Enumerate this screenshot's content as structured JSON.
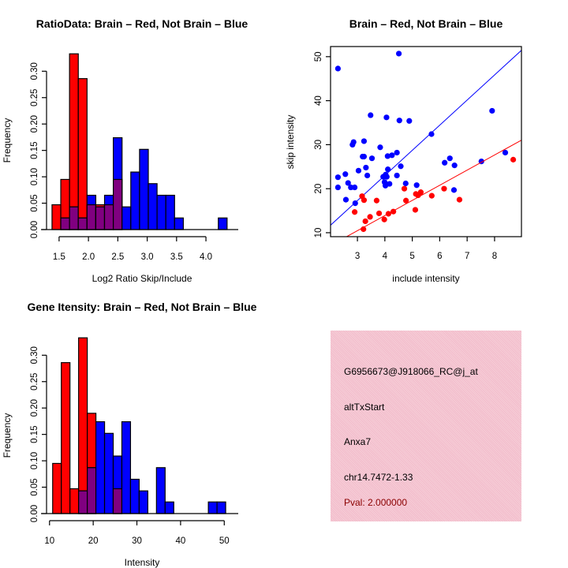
{
  "colors": {
    "red": "#ff0000",
    "blue": "#0000ff",
    "overlap": "#800080",
    "pval": "#8b0000",
    "panel": "#f4c4cf"
  },
  "chart_data": [
    {
      "type": "bar",
      "title": "RatioData: Brain – Red, Not Brain – Blue",
      "xlabel": "Log2 Ratio Skip/Include",
      "ylabel": "Frequency",
      "bin_start": 1.38,
      "bin_width": 0.149,
      "xlim": [
        1.3,
        4.55
      ],
      "ylim": [
        0,
        0.333
      ],
      "xticks": [
        "1.5",
        "2.0",
        "2.5",
        "3.0",
        "3.5",
        "4.0"
      ],
      "yticks": [
        "0.00",
        "0.05",
        "0.10",
        "0.15",
        "0.20",
        "0.25",
        "0.30"
      ],
      "series": [
        {
          "name": "Brain",
          "color": "red",
          "values": [
            0.047,
            0.095,
            0.333,
            0.286,
            0.047,
            0.047,
            0.047,
            0.095,
            0,
            0,
            0,
            0,
            0,
            0,
            0,
            0,
            0,
            0,
            0,
            0
          ]
        },
        {
          "name": "Not Brain",
          "color": "blue",
          "values": [
            0,
            0.022,
            0.043,
            0.022,
            0.065,
            0.043,
            0.065,
            0.174,
            0.043,
            0.109,
            0.152,
            0.087,
            0.065,
            0.065,
            0.022,
            0,
            0,
            0,
            0,
            0.022
          ]
        }
      ]
    },
    {
      "type": "scatter",
      "title": "Brain – Red, Not Brain – Blue",
      "xlabel": "include intensity",
      "ylabel": "skip intensity",
      "xlim": [
        2.02,
        8.98
      ],
      "ylim": [
        9.1,
        52.3
      ],
      "xticks": [
        "3",
        "4",
        "5",
        "6",
        "7",
        "8"
      ],
      "yticks": [
        "10",
        "20",
        "30",
        "40",
        "50"
      ],
      "series": [
        {
          "name": "Not Brain",
          "color": "blue",
          "fit": {
            "slope": 5.71,
            "intercept": 0.17
          },
          "points": [
            [
              2.29,
              47.3
            ],
            [
              4.51,
              50.7
            ],
            [
              2.29,
              22.6
            ],
            [
              2.29,
              20.3
            ],
            [
              2.56,
              23.3
            ],
            [
              2.58,
              17.5
            ],
            [
              2.66,
              21.3
            ],
            [
              2.76,
              20.3
            ],
            [
              2.9,
              20.3
            ],
            [
              2.92,
              16.7
            ],
            [
              2.82,
              30.0
            ],
            [
              2.86,
              30.6
            ],
            [
              3.04,
              24.1
            ],
            [
              3.19,
              27.3
            ],
            [
              3.24,
              27.3
            ],
            [
              3.24,
              30.8
            ],
            [
              3.31,
              24.8
            ],
            [
              3.36,
              23.0
            ],
            [
              3.48,
              36.7
            ],
            [
              3.53,
              26.9
            ],
            [
              3.83,
              29.4
            ],
            [
              3.94,
              22.7
            ],
            [
              3.99,
              21.5
            ],
            [
              4.02,
              20.7
            ],
            [
              4.03,
              23.2
            ],
            [
              4.07,
              22.7
            ],
            [
              4.06,
              36.2
            ],
            [
              4.1,
              27.4
            ],
            [
              4.11,
              24.4
            ],
            [
              4.17,
              21.1
            ],
            [
              4.26,
              27.6
            ],
            [
              4.44,
              28.2
            ],
            [
              4.44,
              23.0
            ],
            [
              4.53,
              35.5
            ],
            [
              4.58,
              25.1
            ],
            [
              4.76,
              21.2
            ],
            [
              4.89,
              35.4
            ],
            [
              5.16,
              20.8
            ],
            [
              5.7,
              32.4
            ],
            [
              6.18,
              25.9
            ],
            [
              6.37,
              26.9
            ],
            [
              6.54,
              25.3
            ],
            [
              6.52,
              19.7
            ],
            [
              7.52,
              26.2
            ],
            [
              7.91,
              37.7
            ],
            [
              8.39,
              28.2
            ]
          ]
        },
        {
          "name": "Brain",
          "color": "red",
          "fit": {
            "slope": 3.44,
            "intercept": 0.14
          },
          "points": [
            [
              3.17,
              18.3
            ],
            [
              3.24,
              17.4
            ],
            [
              2.9,
              14.7
            ],
            [
              3.29,
              12.6
            ],
            [
              3.22,
              10.8
            ],
            [
              3.46,
              13.6
            ],
            [
              3.7,
              17.3
            ],
            [
              3.79,
              14.4
            ],
            [
              3.98,
              13.0
            ],
            [
              4.13,
              14.3
            ],
            [
              4.31,
              14.8
            ],
            [
              4.71,
              20.0
            ],
            [
              4.77,
              17.3
            ],
            [
              5.11,
              15.2
            ],
            [
              5.13,
              18.8
            ],
            [
              5.21,
              18.5
            ],
            [
              5.31,
              19.2
            ],
            [
              5.71,
              18.4
            ],
            [
              6.16,
              20.0
            ],
            [
              6.72,
              17.5
            ],
            [
              8.68,
              26.6
            ]
          ]
        }
      ]
    },
    {
      "type": "bar",
      "title": "Gene Itensity: Brain – Red, Not Brain – Blue",
      "xlabel": "Intensity",
      "ylabel": "Frequency",
      "bin_start": 10.72,
      "bin_width": 1.98,
      "xlim": [
        9.5,
        53.2
      ],
      "ylim": [
        0,
        0.333
      ],
      "xticks": [
        "10",
        "20",
        "30",
        "40",
        "50"
      ],
      "yticks": [
        "0.00",
        "0.05",
        "0.10",
        "0.15",
        "0.20",
        "0.25",
        "0.30"
      ],
      "series": [
        {
          "name": "Brain",
          "color": "red",
          "values": [
            0.095,
            0.286,
            0.047,
            0.333,
            0.19,
            0,
            0,
            0.047,
            0,
            0,
            0,
            0,
            0,
            0,
            0,
            0,
            0,
            0,
            0,
            0
          ]
        },
        {
          "name": "Not Brain",
          "color": "blue",
          "values": [
            0,
            0,
            0,
            0.043,
            0.087,
            0.174,
            0.152,
            0.109,
            0.174,
            0.065,
            0.043,
            0,
            0.087,
            0.022,
            0,
            0,
            0,
            0,
            0.022,
            0.022
          ]
        }
      ]
    }
  ],
  "info": {
    "probe": "G6956673@J918066_RC@j_at",
    "event_type": "altTxStart",
    "gene": "Anxa7",
    "location": "chr14.7472-1.33",
    "pval": "Pval: 2.000000"
  }
}
